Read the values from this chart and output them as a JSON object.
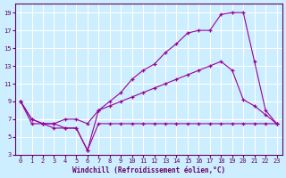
{
  "background_color": "#cceeff",
  "grid_color": "#ffffff",
  "line_color": "#990099",
  "xlabel": "Windchill (Refroidissement éolien,°C)",
  "xlabel_color": "#660066",
  "tick_color": "#660066",
  "xlim": [
    -0.5,
    23.5
  ],
  "ylim": [
    3,
    20
  ],
  "xticks": [
    0,
    1,
    2,
    3,
    4,
    5,
    6,
    7,
    8,
    9,
    10,
    11,
    12,
    13,
    14,
    15,
    16,
    17,
    18,
    19,
    20,
    21,
    22,
    23
  ],
  "yticks": [
    3,
    5,
    7,
    9,
    11,
    13,
    15,
    17,
    19
  ],
  "line1_x": [
    0,
    1,
    2,
    3,
    4,
    5,
    6,
    7,
    8,
    9,
    10,
    11,
    12,
    13,
    14,
    15,
    16,
    17,
    18,
    19,
    20,
    21,
    22,
    23
  ],
  "line1_y": [
    9.0,
    7.0,
    6.5,
    6.5,
    6.0,
    6.0,
    3.5,
    8.0,
    9.0,
    10.0,
    11.5,
    12.5,
    13.2,
    14.5,
    15.5,
    16.7,
    17.0,
    17.0,
    18.8,
    19.0,
    19.0,
    13.5,
    8.0,
    6.5
  ],
  "line2_x": [
    0,
    1,
    2,
    3,
    4,
    5,
    6,
    7,
    8,
    9,
    10,
    11,
    12,
    13,
    14,
    15,
    16,
    17,
    18,
    19,
    20,
    21,
    22,
    23
  ],
  "line2_y": [
    9.0,
    7.0,
    6.5,
    6.5,
    7.0,
    7.0,
    6.5,
    8.0,
    8.5,
    9.0,
    9.5,
    10.0,
    10.5,
    11.0,
    11.5,
    12.0,
    12.5,
    13.0,
    13.5,
    12.5,
    9.2,
    8.5,
    7.5,
    6.5
  ],
  "line3_x": [
    0,
    1,
    2,
    3,
    4,
    5,
    6,
    7,
    8,
    9,
    10,
    11,
    12,
    13,
    14,
    15,
    16,
    17,
    18,
    19,
    20,
    21,
    22,
    23
  ],
  "line3_y": [
    9.0,
    6.5,
    6.5,
    6.0,
    6.0,
    6.0,
    3.5,
    6.5,
    6.5,
    6.5,
    6.5,
    6.5,
    6.5,
    6.5,
    6.5,
    6.5,
    6.5,
    6.5,
    6.5,
    6.5,
    6.5,
    6.5,
    6.5,
    6.5
  ]
}
